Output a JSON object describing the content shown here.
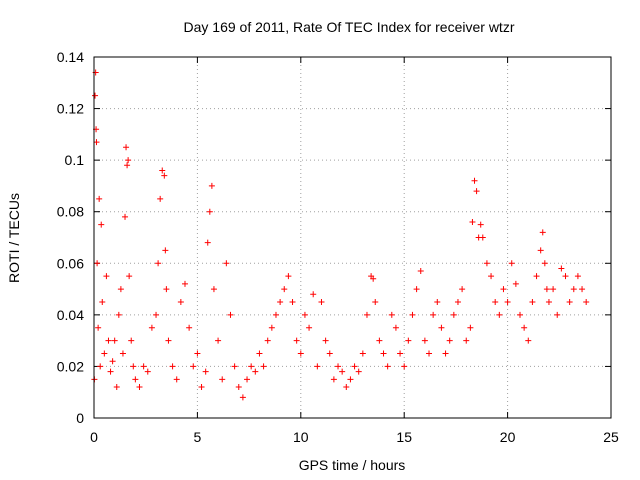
{
  "chart_data": {
    "type": "scatter",
    "title": "Day 169 of 2011, Rate Of TEC Index for receiver wtzr",
    "xlabel": "GPS time / hours",
    "ylabel": "ROTI / TECUs",
    "xlim": [
      0,
      25
    ],
    "ylim": [
      0,
      0.14
    ],
    "xticks": [
      "0",
      "5",
      "10",
      "15",
      "20",
      "25"
    ],
    "yticks": [
      "0",
      "0.02",
      "0.04",
      "0.06",
      "0.08",
      "0.1",
      "0.12",
      "0.14"
    ],
    "grid": true,
    "marker": "plus",
    "color": "#ff0000",
    "series": [
      {
        "x": [
          0.02,
          0.05,
          0.08,
          0.1,
          0.12,
          0.15,
          0.2,
          0.25,
          0.3,
          0.35,
          0.4,
          0.5,
          0.6,
          0.7,
          0.8,
          0.9,
          1.0,
          1.1,
          1.2,
          1.3,
          1.4,
          1.5,
          1.55,
          1.6,
          1.65,
          1.7,
          1.8,
          1.9,
          2.0,
          2.2,
          2.4,
          2.6,
          2.8,
          3.0,
          3.1,
          3.2,
          3.3,
          3.4,
          3.45,
          3.5,
          3.6,
          3.8,
          4.0,
          4.2,
          4.4,
          4.6,
          4.8,
          5.0,
          5.2,
          5.4,
          5.5,
          5.6,
          5.7,
          5.8,
          6.0,
          6.2,
          6.4,
          6.6,
          6.8,
          7.0,
          7.2,
          7.4,
          7.6,
          7.8,
          8.0,
          8.2,
          8.4,
          8.6,
          8.8,
          9.0,
          9.2,
          9.4,
          9.6,
          9.8,
          10.0,
          10.2,
          10.4,
          10.6,
          10.8,
          11.0,
          11.2,
          11.4,
          11.6,
          11.8,
          12.0,
          12.2,
          12.4,
          12.6,
          12.8,
          13.0,
          13.2,
          13.4,
          13.5,
          13.6,
          13.8,
          14.0,
          14.2,
          14.4,
          14.6,
          14.8,
          15.0,
          15.2,
          15.4,
          15.6,
          15.8,
          16.0,
          16.2,
          16.4,
          16.6,
          16.8,
          17.0,
          17.2,
          17.4,
          17.6,
          17.8,
          18.0,
          18.2,
          18.3,
          18.4,
          18.5,
          18.6,
          18.7,
          18.8,
          19.0,
          19.2,
          19.4,
          19.6,
          19.8,
          20.0,
          20.2,
          20.4,
          20.6,
          20.8,
          21.0,
          21.2,
          21.4,
          21.6,
          21.7,
          21.8,
          21.9,
          22.0,
          22.2,
          22.4,
          22.6,
          22.8,
          23.0,
          23.2,
          23.4,
          23.6,
          23.8
        ],
        "y": [
          0.015,
          0.125,
          0.134,
          0.112,
          0.107,
          0.06,
          0.035,
          0.085,
          0.02,
          0.075,
          0.045,
          0.025,
          0.055,
          0.03,
          0.018,
          0.022,
          0.03,
          0.012,
          0.04,
          0.05,
          0.025,
          0.078,
          0.105,
          0.098,
          0.1,
          0.055,
          0.03,
          0.02,
          0.015,
          0.012,
          0.02,
          0.018,
          0.035,
          0.04,
          0.06,
          0.085,
          0.096,
          0.094,
          0.065,
          0.05,
          0.03,
          0.02,
          0.015,
          0.045,
          0.052,
          0.035,
          0.02,
          0.025,
          0.012,
          0.018,
          0.068,
          0.08,
          0.09,
          0.05,
          0.03,
          0.015,
          0.06,
          0.04,
          0.02,
          0.012,
          0.008,
          0.015,
          0.02,
          0.018,
          0.025,
          0.02,
          0.03,
          0.035,
          0.04,
          0.045,
          0.05,
          0.055,
          0.045,
          0.03,
          0.025,
          0.04,
          0.035,
          0.048,
          0.02,
          0.045,
          0.03,
          0.025,
          0.015,
          0.02,
          0.018,
          0.012,
          0.015,
          0.02,
          0.018,
          0.025,
          0.04,
          0.055,
          0.054,
          0.045,
          0.03,
          0.025,
          0.02,
          0.04,
          0.035,
          0.025,
          0.02,
          0.03,
          0.04,
          0.05,
          0.057,
          0.03,
          0.025,
          0.04,
          0.045,
          0.035,
          0.025,
          0.03,
          0.04,
          0.045,
          0.05,
          0.03,
          0.035,
          0.076,
          0.092,
          0.088,
          0.07,
          0.075,
          0.07,
          0.06,
          0.055,
          0.045,
          0.04,
          0.05,
          0.045,
          0.06,
          0.052,
          0.04,
          0.035,
          0.03,
          0.045,
          0.055,
          0.065,
          0.072,
          0.06,
          0.05,
          0.045,
          0.05,
          0.04,
          0.058,
          0.055,
          0.045,
          0.05,
          0.055,
          0.05,
          0.045
        ]
      }
    ]
  }
}
